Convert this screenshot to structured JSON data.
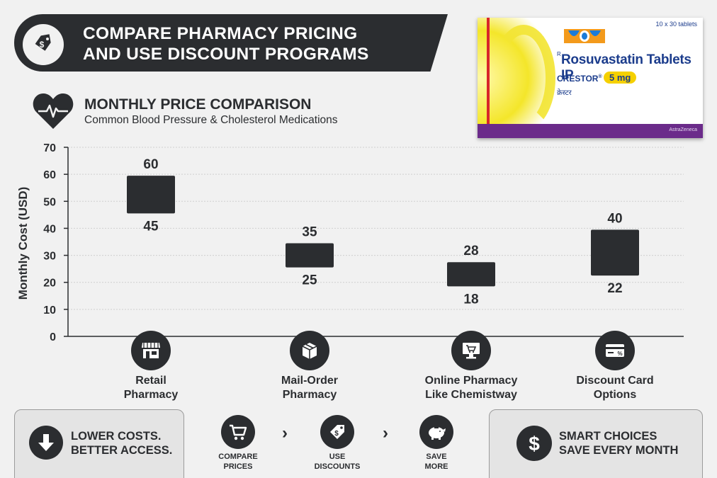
{
  "header": {
    "title_line1": "COMPARE PHARMACY PRICING",
    "title_line2": "AND USE DISCOUNT PROGRAMS",
    "icon": "price-tag-icon"
  },
  "product": {
    "count": "10 x 30 tablets",
    "rx": "R",
    "name": "Rosuvastatin Tablets IP",
    "brand": "CRESTOR",
    "dose": "5 mg",
    "hindi": "क्रेस्टर",
    "maker": "AstraZeneca"
  },
  "section": {
    "title": "MONTHLY PRICE COMPARISON",
    "subtitle": "Common Blood Pressure & Cholesterol Medications",
    "icon": "heart-pulse-icon"
  },
  "chart_data": {
    "type": "range-bar",
    "ylabel": "Monthly Cost (USD)",
    "ylim": [
      0,
      70
    ],
    "yticks": [
      0,
      10,
      20,
      30,
      40,
      50,
      60,
      70
    ],
    "grid": true,
    "categories": [
      {
        "line1": "Retail",
        "line2": "Pharmacy",
        "icon": "storefront-icon",
        "low": 45,
        "high": 60
      },
      {
        "line1": "Mail-Order",
        "line2": "Pharmacy",
        "icon": "package-box-icon",
        "low": 25,
        "high": 35
      },
      {
        "line1": "Online Pharmacy",
        "line2": "Like Chemistway",
        "icon": "shopping-cart-monitor-icon",
        "low": 18,
        "high": 28
      },
      {
        "line1": "Discount Card",
        "line2": "Options",
        "icon": "discount-card-icon",
        "low": 22,
        "high": 40
      }
    ],
    "bar_color": "#2b2d30"
  },
  "footer": {
    "left": {
      "line1": "LOWER COSTS.",
      "line2": "BETTER ACCESS.",
      "icon": "arrow-down-icon"
    },
    "steps": [
      {
        "line1": "COMPARE",
        "line2": "PRICES",
        "icon": "cart-icon"
      },
      {
        "line1": "USE",
        "line2": "DISCOUNTS",
        "icon": "discount-tag-icon"
      },
      {
        "line1": "SAVE",
        "line2": "MORE",
        "icon": "piggy-bank-icon"
      }
    ],
    "right": {
      "line1": "SMART CHOICES",
      "line2": "SAVE EVERY MONTH",
      "icon": "dollar-icon"
    }
  },
  "colors": {
    "dark": "#2b2d30",
    "background": "#f1f1f1",
    "panel": "#e4e4e4",
    "brand_blue": "#1b3c8c",
    "dose_yellow": "#f5d000"
  }
}
